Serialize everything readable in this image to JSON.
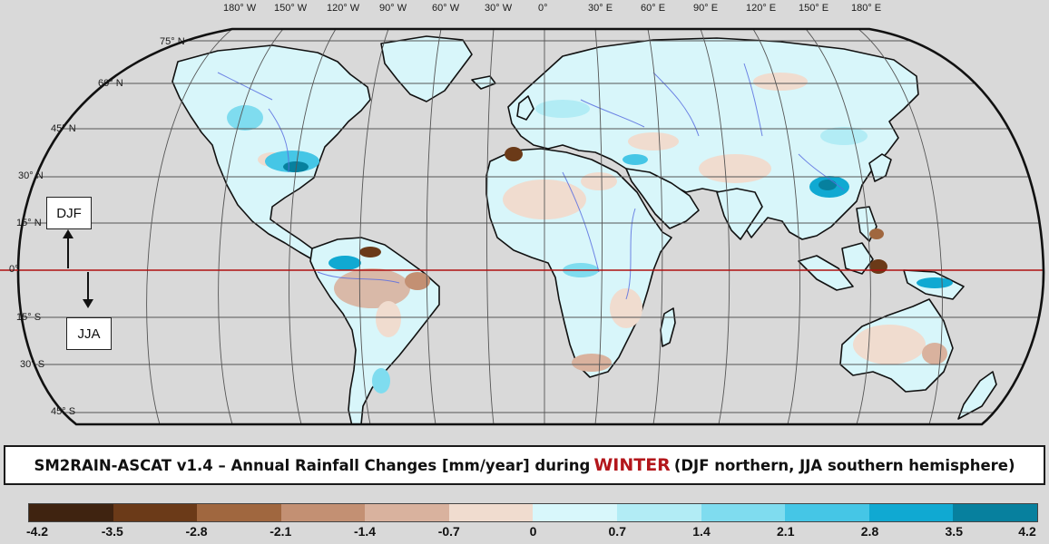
{
  "title": {
    "prefix": "SM2RAIN-ASCAT v1.4 – Annual Rainfall Changes [mm/year] during",
    "highlight": "WINTER",
    "suffix": "(DJF northern, JJA southern hemisphere)"
  },
  "longitude_labels": [
    "180° W",
    "150° W",
    "120° W",
    "90° W",
    "60° W",
    "30° W",
    "0°",
    "30° E",
    "60° E",
    "90° E",
    "120° E",
    "150° E",
    "180° E"
  ],
  "latitude_labels": [
    "75° N",
    "60° N",
    "45° N",
    "30° N",
    "15° N",
    "0°",
    "15° S",
    "30° S",
    "45° S"
  ],
  "season_labels": {
    "north": "DJF",
    "south": "JJA"
  },
  "colorbar": {
    "ticks": [
      "-4.2",
      "-3.5",
      "-2.8",
      "-2.1",
      "-1.4",
      "-0.7",
      "0",
      "0.7",
      "1.4",
      "2.1",
      "2.8",
      "3.5",
      "4.2"
    ],
    "colors": [
      "#3f2310",
      "#6b3a18",
      "#a0673f",
      "#c39073",
      "#d9b29e",
      "#f0dccf",
      "#d8f7fb",
      "#b2ecf5",
      "#7fdcef",
      "#45c6e6",
      "#10a9d2",
      "#07809e"
    ]
  },
  "colors": {
    "ocean": "#d9d9d9",
    "land": "#d8f6fa",
    "equator": "#b01010",
    "grid": "#555555",
    "rivers": "#5a6fe0",
    "title_highlight": "#b3161b"
  }
}
